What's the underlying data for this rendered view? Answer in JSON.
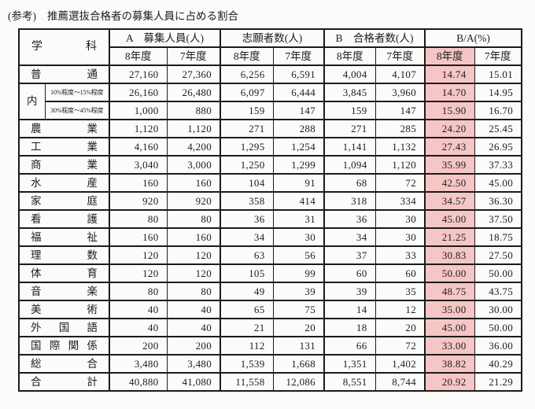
{
  "title": {
    "prefix": "(参考)",
    "main": "推薦選抜合格者の募集人員に占める割合"
  },
  "colors": {
    "highlight": "#f5c6c5",
    "border": "#1b1b1b",
    "text": "#1d1d1d"
  },
  "header": {
    "dept": "学科",
    "groups": [
      "A　募集人員(人)",
      "志願者数(人)",
      "B　合格者数(人)",
      "B/A(%)"
    ],
    "y8": "8年度",
    "y7": "7年度"
  },
  "inner": {
    "label": "内"
  },
  "rows": [
    {
      "name": "普通",
      "values": [
        "27,160",
        "27,360",
        "6,256",
        "6,591",
        "4,004",
        "4,107",
        "14.74",
        "15.01"
      ]
    },
    {
      "name": "10%程度〜15%程度",
      "values": [
        "26,160",
        "26,480",
        "6,097",
        "6,444",
        "3,845",
        "3,960",
        "14.70",
        "14.95"
      ]
    },
    {
      "name": "30%程度〜45%程度",
      "values": [
        "1,000",
        "880",
        "159",
        "147",
        "159",
        "147",
        "15.90",
        "16.70"
      ]
    },
    {
      "name": "農業",
      "values": [
        "1,120",
        "1,120",
        "271",
        "288",
        "271",
        "285",
        "24.20",
        "25.45"
      ]
    },
    {
      "name": "工業",
      "values": [
        "4,160",
        "4,200",
        "1,295",
        "1,254",
        "1,141",
        "1,132",
        "27.43",
        "26.95"
      ]
    },
    {
      "name": "商業",
      "values": [
        "3,040",
        "3,000",
        "1,250",
        "1,299",
        "1,094",
        "1,120",
        "35.99",
        "37.33"
      ]
    },
    {
      "name": "水産",
      "values": [
        "160",
        "160",
        "104",
        "91",
        "68",
        "72",
        "42.50",
        "45.00"
      ]
    },
    {
      "name": "家庭",
      "values": [
        "920",
        "920",
        "358",
        "414",
        "318",
        "334",
        "34.57",
        "36.30"
      ]
    },
    {
      "name": "看護",
      "values": [
        "80",
        "80",
        "36",
        "31",
        "36",
        "30",
        "45.00",
        "37.50"
      ]
    },
    {
      "name": "福祉",
      "values": [
        "160",
        "160",
        "34",
        "30",
        "34",
        "30",
        "21.25",
        "18.75"
      ]
    },
    {
      "name": "理数",
      "values": [
        "120",
        "120",
        "63",
        "56",
        "37",
        "33",
        "30.83",
        "27.50"
      ]
    },
    {
      "name": "体育",
      "values": [
        "120",
        "120",
        "105",
        "99",
        "60",
        "60",
        "50.00",
        "50.00"
      ]
    },
    {
      "name": "音楽",
      "values": [
        "80",
        "80",
        "49",
        "39",
        "39",
        "35",
        "48.75",
        "43.75"
      ]
    },
    {
      "name": "美術",
      "values": [
        "40",
        "40",
        "65",
        "75",
        "14",
        "12",
        "35.00",
        "30.00"
      ]
    },
    {
      "name": "外国語",
      "values": [
        "40",
        "40",
        "21",
        "20",
        "18",
        "20",
        "45.00",
        "50.00"
      ]
    },
    {
      "name": "国際関係",
      "values": [
        "200",
        "200",
        "112",
        "131",
        "66",
        "72",
        "33.00",
        "36.00"
      ]
    },
    {
      "name": "総合",
      "values": [
        "3,480",
        "3,480",
        "1,539",
        "1,668",
        "1,351",
        "1,402",
        "38.82",
        "40.29"
      ]
    },
    {
      "name": "合計",
      "values": [
        "40,880",
        "41,080",
        "11,558",
        "12,086",
        "8,551",
        "8,744",
        "20.92",
        "21.29"
      ]
    }
  ]
}
